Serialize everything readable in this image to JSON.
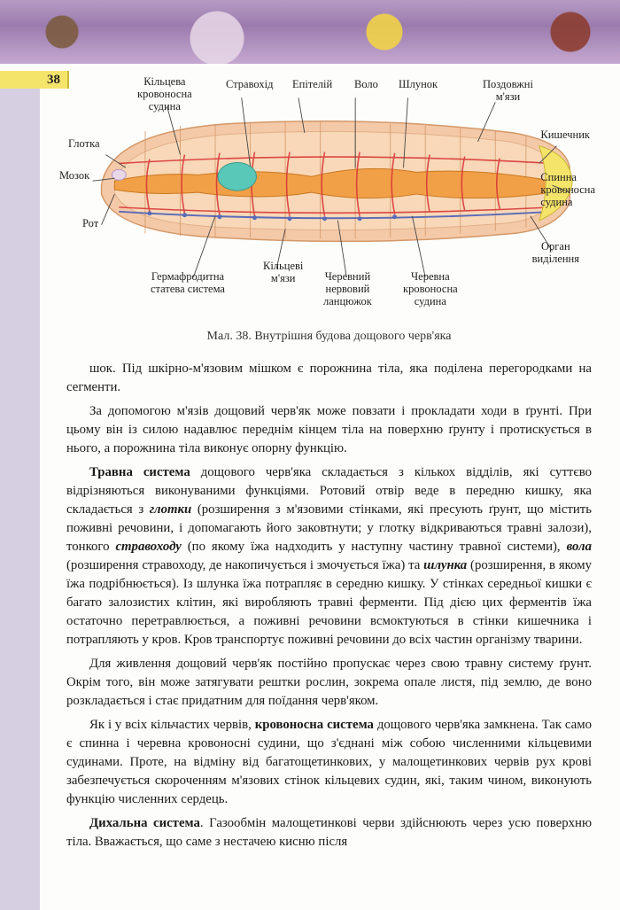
{
  "page_number": "38",
  "diagram": {
    "caption": "Мал. 38. Внутрішня будова дощового черв'яка",
    "labels": {
      "top1": "Кільцева\nкровоносна\nсудина",
      "top2": "Стравохід",
      "top3": "Епітелій",
      "top4": "Воло",
      "top5": "Шлунок",
      "top6": "Поздовжні\nм'язи",
      "right1": "Кишечник",
      "right2": "Спинна\nкровоносна\nсудина",
      "right3": "Орган\nвиділення",
      "left1": "Глотка",
      "left2": "Мозок",
      "left3": "Рот",
      "bot1": "Гермафродитна\nстатева система",
      "bot2": "Кільцеві\nм'язи",
      "bot3": "Черевний\nнервовий\nланцюжок",
      "bot4": "Черевна\nкровоносна\nсудина"
    },
    "colors": {
      "body_outer": "#f4c9a8",
      "body_inner": "#f8d8b8",
      "segment_line": "#d49868",
      "gut": "#f2a048",
      "blood": "#d83838",
      "nerve": "#5a6ab8",
      "organ_green": "#5ac8b8",
      "leader": "#444444"
    }
  },
  "paragraphs": {
    "p1": "шок. Під шкірно-м'язовим мішком є порожнина тіла, яка поділена перегородками на сегменти.",
    "p2": "За допомогою м'язів дощовий черв'як може повзати і прокладати ходи в ґрунті. При цьому він із силою надавлює переднім кінцем тіла на поверхню ґрунту і протискується в нього, а порожнина тіла виконує опорну функцію.",
    "p3_a": "Травна система",
    "p3_b": " дощового черв'яка складається з кількох відділів, які суттєво відрізняються виконуваними функціями. Ротовий отвір веде в передню кишку, яка складається з ",
    "p3_c": "глотки",
    "p3_d": " (розширення з м'язовими стінками, які пресують ґрунт, що містить поживні речовини, і допомагають його заковтнути; у глотку відкриваються травні залози), тонкого ",
    "p3_e": "стравоходу",
    "p3_f": " (по якому їжа надходить у наступну частину травної системи), ",
    "p3_g": "вола",
    "p3_h": " (розширення стравоходу, де накопичується і змочується їжа) та ",
    "p3_i": "шлунка",
    "p3_j": " (розширення, в якому їжа подрібнюється). Із шлунка їжа потрапляє в середню кишку. У стінках середньої кишки є багато залозистих клітин, які виробляють травні ферменти. Під дією цих ферментів їжа остаточно перетравлюється, а поживні речовини всмоктуються в стінки кишечника і потрапляють у кров. Кров транспортує поживні речовини до всіх частин організму тварини.",
    "p4": "Для живлення дощовий черв'як постійно пропускає через свою травну систему ґрунт. Окрім того, він може затягувати рештки рослин, зокрема опале листя, під землю, де воно розкладається і стає придатним для поїдання черв'яком.",
    "p5_a": "Як і у всіх кільчастих червів, ",
    "p5_b": "кровоносна система",
    "p5_c": " дощового черв'яка замкнена. Так само є спинна і черевна кровоносні судини, що з'єднані між собою численними кільцевими судинами. Проте, на відміну від багатощетинкових, у малощетинкових червів рух крові забезпечується скороченням м'язових стінок кільцевих судин, які, таким чином, виконують функцію численних сердець.",
    "p6_a": "Дихальна система",
    "p6_b": ". Газообмін малощетинкові черви здійснюють через усю поверхню тіла. Вважається, що саме з нестачею кисню після"
  }
}
